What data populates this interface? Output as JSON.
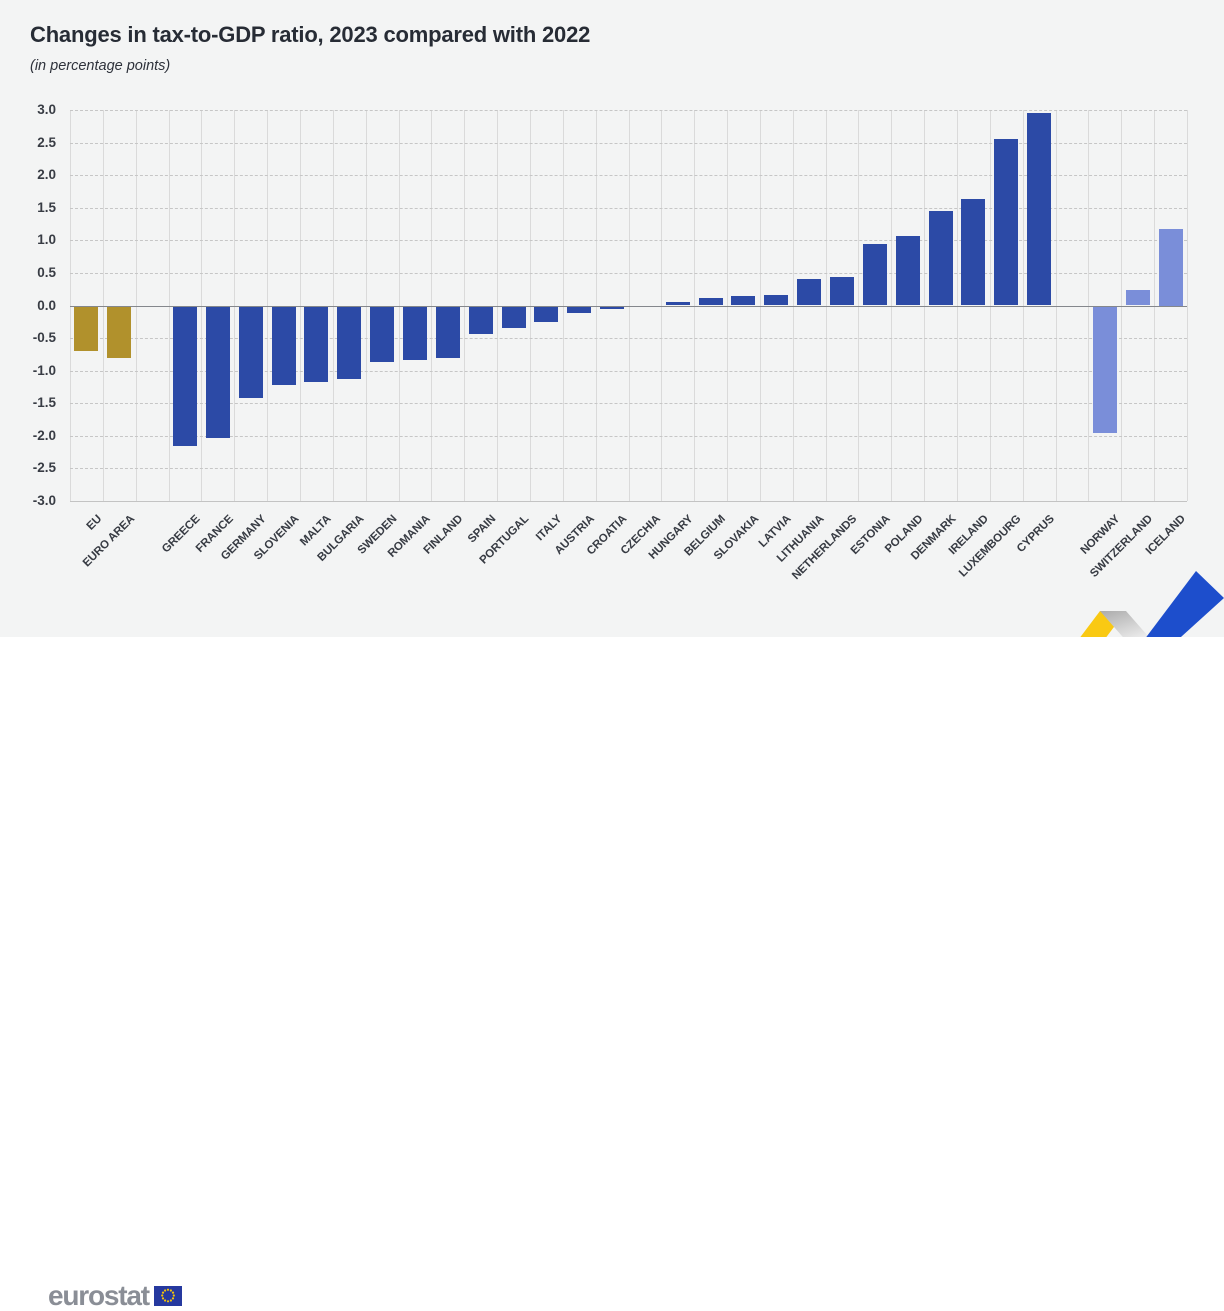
{
  "title": "Changes in tax-to-GDP ratio, 2023 compared with 2022",
  "subtitle": "(in percentage points)",
  "footer": {
    "brand": "eurostat"
  },
  "colors": {
    "background": "#f3f4f4",
    "footer_background": "#ffffff",
    "eu_aggregate_bar": "#b1912c",
    "eu_member_bar": "#2c4aa6",
    "efta_bar": "#7a8ed9",
    "grid_vertical": "#dadada",
    "grid_horizontal_dashed": "#c6c6c6",
    "zero_line": "#84878c",
    "swoosh_yellow": "#f9c913",
    "swoosh_blue": "#1d4ecc",
    "eu_flag_blue": "#26399f",
    "eu_flag_stars": "#f7c607"
  },
  "chart_data": {
    "type": "bar",
    "title": "Changes in tax-to-GDP ratio, 2023 compared with 2022",
    "subtitle": "(in percentage points)",
    "ylabel": "percentage points",
    "ylim": [
      -3.0,
      3.0
    ],
    "ytick_step": 0.5,
    "y_tick_labels": [
      "3.0",
      "2.5",
      "2.0",
      "1.5",
      "1.0",
      "0.5",
      "0.0",
      "-0.5",
      "-1.0",
      "-1.5",
      "-2.0",
      "-2.5",
      "-3.0"
    ],
    "grid": true,
    "legend_position": "none",
    "bar_colors": {
      "eu_aggregate": "#b1912c",
      "eu_member": "#2c4aa6",
      "efta": "#7a8ed9"
    },
    "gap_after_bar_indices": [
      1,
      28
    ],
    "bars": [
      {
        "label": "EU",
        "value": -0.7,
        "group": "eu_aggregate"
      },
      {
        "label": "EURO AREA",
        "value": -0.8,
        "group": "eu_aggregate"
      },
      {
        "label": "GREECE",
        "value": -2.15,
        "group": "eu_member"
      },
      {
        "label": "FRANCE",
        "value": -2.03,
        "group": "eu_member"
      },
      {
        "label": "GERMANY",
        "value": -1.42,
        "group": "eu_member"
      },
      {
        "label": "SLOVENIA",
        "value": -1.22,
        "group": "eu_member"
      },
      {
        "label": "MALTA",
        "value": -1.18,
        "group": "eu_member"
      },
      {
        "label": "BULGARIA",
        "value": -1.13,
        "group": "eu_member"
      },
      {
        "label": "SWEDEN",
        "value": -0.87,
        "group": "eu_member"
      },
      {
        "label": "ROMANIA",
        "value": -0.84,
        "group": "eu_member"
      },
      {
        "label": "FINLAND",
        "value": -0.8,
        "group": "eu_member"
      },
      {
        "label": "SPAIN",
        "value": -0.43,
        "group": "eu_member"
      },
      {
        "label": "PORTUGAL",
        "value": -0.34,
        "group": "eu_member"
      },
      {
        "label": "ITALY",
        "value": -0.26,
        "group": "eu_member"
      },
      {
        "label": "AUSTRIA",
        "value": -0.12,
        "group": "eu_member"
      },
      {
        "label": "CROATIA",
        "value": -0.06,
        "group": "eu_member"
      },
      {
        "label": "CZECHIA",
        "value": 0.0,
        "group": "eu_member"
      },
      {
        "label": "HUNGARY",
        "value": 0.05,
        "group": "eu_member"
      },
      {
        "label": "BELGIUM",
        "value": 0.12,
        "group": "eu_member"
      },
      {
        "label": "SLOVAKIA",
        "value": 0.15,
        "group": "eu_member"
      },
      {
        "label": "LATVIA",
        "value": 0.16,
        "group": "eu_member"
      },
      {
        "label": "LITHUANIA",
        "value": 0.4,
        "group": "eu_member"
      },
      {
        "label": "NETHERLANDS",
        "value": 0.43,
        "group": "eu_member"
      },
      {
        "label": "ESTONIA",
        "value": 0.95,
        "group": "eu_member"
      },
      {
        "label": "POLAND",
        "value": 1.06,
        "group": "eu_member"
      },
      {
        "label": "DENMARK",
        "value": 1.45,
        "group": "eu_member"
      },
      {
        "label": "IRELAND",
        "value": 1.64,
        "group": "eu_member"
      },
      {
        "label": "LUXEMBOURG",
        "value": 2.55,
        "group": "eu_member"
      },
      {
        "label": "CYPRUS",
        "value": 2.95,
        "group": "eu_member"
      },
      {
        "label": "NORWAY",
        "value": -1.96,
        "group": "efta"
      },
      {
        "label": "SWITZERLAND",
        "value": 0.24,
        "group": "efta"
      },
      {
        "label": "ICELAND",
        "value": 1.17,
        "group": "efta"
      }
    ]
  }
}
